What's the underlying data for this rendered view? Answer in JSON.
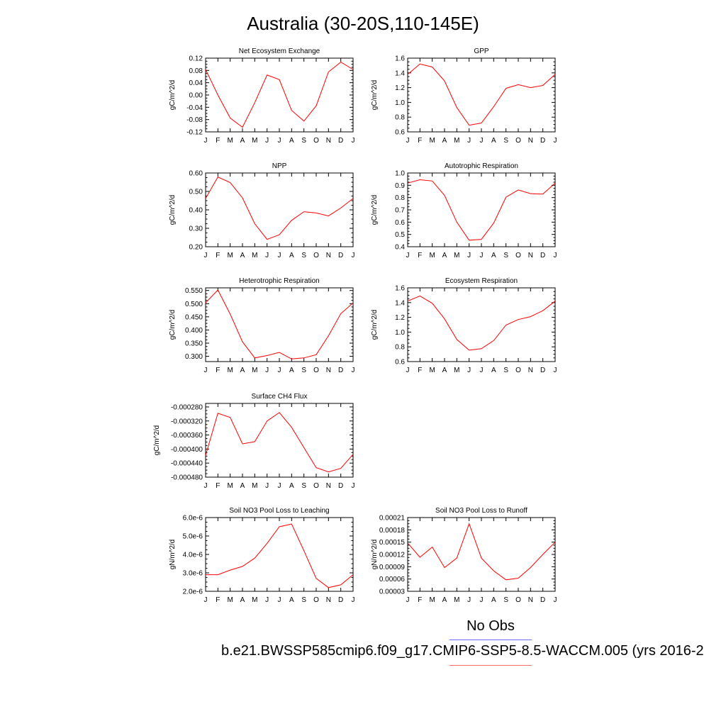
{
  "title": "Australia (30-20S,110-145E)",
  "legend": {
    "no_obs": "No Obs",
    "case": "b.e21.BWSSP585cmip6.f09_g17.CMIP6-SSP5-8.5-WACCM.005 (yrs 2016-2"
  },
  "colors": {
    "line": "#ff0000",
    "legend_obs": "#6b6bff",
    "legend_case": "#ff6b6b"
  },
  "chart_data": [
    {
      "type": "line",
      "title": "Net Ecosystem Exchange",
      "ylabel": "gC/m^2/d",
      "categories": [
        "J",
        "F",
        "M",
        "A",
        "M",
        "J",
        "J",
        "A",
        "S",
        "O",
        "N",
        "D",
        "J"
      ],
      "ylim": [
        -0.12,
        0.12
      ],
      "yticks": [
        "0.12",
        "0.08",
        "0.04",
        "0.00",
        "-0.04",
        "-0.08",
        "-0.12"
      ],
      "values": [
        0.083,
        0.0,
        -0.075,
        -0.105,
        -0.025,
        0.065,
        0.05,
        -0.05,
        -0.085,
        -0.035,
        0.075,
        0.107,
        0.083
      ]
    },
    {
      "type": "line",
      "title": "GPP",
      "ylabel": "gC/m^2/d",
      "categories": [
        "J",
        "F",
        "M",
        "A",
        "M",
        "J",
        "J",
        "A",
        "S",
        "O",
        "N",
        "D",
        "J"
      ],
      "ylim": [
        0.6,
        1.6
      ],
      "yticks": [
        "1.6",
        "1.4",
        "1.2",
        "1.0",
        "0.8",
        "0.6"
      ],
      "values": [
        1.38,
        1.52,
        1.48,
        1.29,
        0.93,
        0.69,
        0.72,
        0.94,
        1.19,
        1.24,
        1.2,
        1.23,
        1.38
      ]
    },
    {
      "type": "line",
      "title": "NPP",
      "ylabel": "gC/m^2/d",
      "categories": [
        "J",
        "F",
        "M",
        "A",
        "M",
        "J",
        "J",
        "A",
        "S",
        "O",
        "N",
        "D",
        "J"
      ],
      "ylim": [
        0.2,
        0.6
      ],
      "yticks": [
        "0.60",
        "0.50",
        "0.40",
        "0.30",
        "0.20"
      ],
      "values": [
        0.462,
        0.578,
        0.548,
        0.465,
        0.325,
        0.24,
        0.265,
        0.343,
        0.39,
        0.383,
        0.367,
        0.41,
        0.462
      ]
    },
    {
      "type": "line",
      "title": "Autotrophic Respiration",
      "ylabel": "gC/m^2/d",
      "categories": [
        "J",
        "F",
        "M",
        "A",
        "M",
        "J",
        "J",
        "A",
        "S",
        "O",
        "N",
        "D",
        "J"
      ],
      "ylim": [
        0.4,
        1.0
      ],
      "yticks": [
        "1.0",
        "0.9",
        "0.8",
        "0.7",
        "0.6",
        "0.5",
        "0.4"
      ],
      "values": [
        0.918,
        0.945,
        0.935,
        0.818,
        0.6,
        0.453,
        0.46,
        0.592,
        0.803,
        0.862,
        0.832,
        0.828,
        0.918
      ]
    },
    {
      "type": "line",
      "title": "Heterotrophic Respiration",
      "ylabel": "gC/m^2/d",
      "categories": [
        "J",
        "F",
        "M",
        "A",
        "M",
        "J",
        "J",
        "A",
        "S",
        "O",
        "N",
        "D",
        "J"
      ],
      "ylim": [
        0.28,
        0.56
      ],
      "yticks": [
        "0.550",
        "0.500",
        "0.450",
        "0.400",
        "0.350",
        "0.300"
      ],
      "yticks_values": [
        0.55,
        0.5,
        0.45,
        0.4,
        0.35,
        0.3
      ],
      "values": [
        0.503,
        0.552,
        0.46,
        0.355,
        0.294,
        0.303,
        0.315,
        0.29,
        0.294,
        0.306,
        0.378,
        0.462,
        0.503
      ]
    },
    {
      "type": "line",
      "title": "Ecosystem Respiration",
      "ylabel": "gC/m^2/d",
      "categories": [
        "J",
        "F",
        "M",
        "A",
        "M",
        "J",
        "J",
        "A",
        "S",
        "O",
        "N",
        "D",
        "J"
      ],
      "ylim": [
        0.6,
        1.6
      ],
      "yticks": [
        "1.6",
        "1.4",
        "1.2",
        "1.0",
        "0.8",
        "0.6"
      ],
      "values": [
        1.42,
        1.49,
        1.39,
        1.18,
        0.9,
        0.755,
        0.775,
        0.885,
        1.095,
        1.17,
        1.21,
        1.29,
        1.42
      ]
    },
    {
      "type": "line",
      "title": "Surface CH4 Flux",
      "ylabel": "gC/m^2/d",
      "categories": [
        "J",
        "F",
        "M",
        "A",
        "M",
        "J",
        "J",
        "A",
        "S",
        "O",
        "N",
        "D",
        "J"
      ],
      "ylim": [
        -0.00048,
        -0.00027
      ],
      "yticks": [
        "-0.000280",
        "-0.000320",
        "-0.000360",
        "-0.000400",
        "-0.000440",
        "-0.000480"
      ],
      "yticks_values": [
        -0.00028,
        -0.00032,
        -0.00036,
        -0.0004,
        -0.00044,
        -0.00048
      ],
      "values": [
        -0.000418,
        -0.000298,
        -0.00031,
        -0.000385,
        -0.000379,
        -0.00032,
        -0.000296,
        -0.000338,
        -0.000396,
        -0.000453,
        -0.000465,
        -0.000455,
        -0.000415
      ]
    },
    {
      "type": "line",
      "title": "Soil NO3 Pool Loss to Leaching",
      "ylabel": "gN/m^2/d",
      "categories": [
        "J",
        "F",
        "M",
        "A",
        "M",
        "J",
        "J",
        "A",
        "S",
        "O",
        "N",
        "D",
        "J"
      ],
      "ylim": [
        2e-06,
        6e-06
      ],
      "yticks": [
        "6.0e-6",
        "5.0e-6",
        "4.0e-6",
        "3.0e-6",
        "2.0e-6"
      ],
      "yticks_values": [
        6e-06,
        5e-06,
        4e-06,
        3e-06,
        2e-06
      ],
      "values": [
        2.9e-06,
        2.9e-06,
        3.15e-06,
        3.35e-06,
        3.8e-06,
        4.6e-06,
        5.5e-06,
        5.65e-06,
        4.2e-06,
        2.7e-06,
        2.2e-06,
        2.35e-06,
        2.9e-06
      ]
    },
    {
      "type": "line",
      "title": "Soil NO3 Pool Loss to Runoff",
      "ylabel": "gN/m^2/d",
      "categories": [
        "J",
        "F",
        "M",
        "A",
        "M",
        "J",
        "J",
        "A",
        "S",
        "O",
        "N",
        "D",
        "J"
      ],
      "ylim": [
        3e-05,
        0.00021
      ],
      "yticks": [
        "0.00021",
        "0.00018",
        "0.00015",
        "0.00012",
        "0.00009",
        "0.00006",
        "0.00003"
      ],
      "yticks_values": [
        0.00021,
        0.00018,
        0.00015,
        0.00012,
        9e-05,
        6e-05,
        3e-05
      ],
      "values": [
        0.000148,
        0.000113,
        0.000138,
        8.8e-05,
        0.000111,
        0.000195,
        0.000111,
        8e-05,
        5.8e-05,
        6.2e-05,
        8.8e-05,
        0.00012,
        0.00015
      ]
    }
  ]
}
